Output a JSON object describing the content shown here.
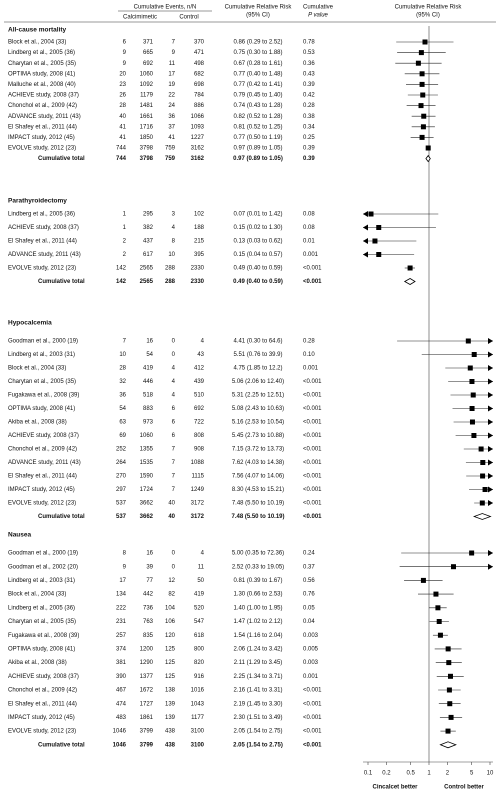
{
  "chart_data": {
    "type": "forest",
    "header": {
      "events": "Cumulative Events, n/N",
      "calc": "Calcimimetic",
      "control": "Control",
      "rr": [
        "Cumulative Relative Risk",
        "(95% CI)"
      ],
      "p": [
        "Cumulative",
        "P value"
      ],
      "plot": [
        "Cumulative Relative Risk",
        "(95% CI)"
      ]
    },
    "xlim": [
      0.1,
      10
    ],
    "xticks": [
      0.1,
      0.2,
      0.5,
      1,
      2,
      5,
      10
    ],
    "log": true,
    "reference": 1,
    "left_label": "Cincalcet better",
    "right_label": "Control better",
    "sections": [
      {
        "title": "All-cause mortality",
        "rows": [
          {
            "study": "Block et al., 2004 (33)",
            "calc_events": 6,
            "calc_n": 371,
            "control_events": 7,
            "control_n": 370,
            "rr": 0.86,
            "lo": 0.29,
            "hi": 2.52,
            "rr_label": "0.86 (0.29 to 2.52)",
            "p": "0.78"
          },
          {
            "study": "Lindberg et al., 2005 (36)",
            "calc_events": 9,
            "calc_n": 665,
            "control_events": 9,
            "control_n": 471,
            "rr": 0.75,
            "lo": 0.3,
            "hi": 1.88,
            "rr_label": "0.75 (0.30 to 1.88)",
            "p": "0.53"
          },
          {
            "study": "Charytan et al., 2005 (35)",
            "calc_events": 9,
            "calc_n": 692,
            "control_events": 11,
            "control_n": 498,
            "rr": 0.67,
            "lo": 0.28,
            "hi": 1.61,
            "rr_label": "0.67 (0.28 to 1.61)",
            "p": "0.36"
          },
          {
            "study": "OPTIMA study, 2008 (41)",
            "calc_events": 20,
            "calc_n": 1060,
            "control_events": 17,
            "control_n": 682,
            "rr": 0.77,
            "lo": 0.4,
            "hi": 1.48,
            "rr_label": "0.77 (0.40 to 1.48)",
            "p": "0.43"
          },
          {
            "study": "Malluche et al., 2008 (40)",
            "calc_events": 23,
            "calc_n": 1092,
            "control_events": 19,
            "control_n": 698,
            "rr": 0.77,
            "lo": 0.42,
            "hi": 1.41,
            "rr_label": "0.77 (0.42 to 1.41)",
            "p": "0.39"
          },
          {
            "study": "ACHIEVE study, 2008 (37)",
            "calc_events": 26,
            "calc_n": 1179,
            "control_events": 22,
            "control_n": 784,
            "rr": 0.79,
            "lo": 0.45,
            "hi": 1.4,
            "rr_label": "0.79 (0.45 to 1.40)",
            "p": "0.42"
          },
          {
            "study": "Chonchol et al., 2009 (42)",
            "calc_events": 28,
            "calc_n": 1481,
            "control_events": 24,
            "control_n": 886,
            "rr": 0.74,
            "lo": 0.43,
            "hi": 1.28,
            "rr_label": "0.74 (0.43 to 1.28)",
            "p": "0.28"
          },
          {
            "study": "ADVANCE study, 2011 (43)",
            "calc_events": 40,
            "calc_n": 1661,
            "control_events": 36,
            "control_n": 1066,
            "rr": 0.82,
            "lo": 0.52,
            "hi": 1.28,
            "rr_label": "0.82 (0.52 to 1.28)",
            "p": "0.38"
          },
          {
            "study": "El Shafey et al., 2011 (44)",
            "calc_events": 41,
            "calc_n": 1716,
            "control_events": 37,
            "control_n": 1093,
            "rr": 0.81,
            "lo": 0.52,
            "hi": 1.25,
            "rr_label": "0.81 (0.52 to 1.25)",
            "p": "0.34"
          },
          {
            "study": "IMPACT study, 2012 (45)",
            "calc_events": 41,
            "calc_n": 1850,
            "control_events": 41,
            "control_n": 1227,
            "rr": 0.77,
            "lo": 0.5,
            "hi": 1.19,
            "rr_label": "0.77 (0.50 to 1.19)",
            "p": "0.25"
          },
          {
            "study": "EVOLVE study, 2012 (23)",
            "calc_events": 744,
            "calc_n": 3798,
            "control_events": 759,
            "control_n": 3162,
            "rr": 0.97,
            "lo": 0.89,
            "hi": 1.05,
            "rr_label": "0.97 (0.89 to 1.05)",
            "p": "0.39"
          }
        ],
        "total": {
          "study": "Cumulative total",
          "calc_events": 744,
          "calc_n": 3798,
          "control_events": 759,
          "control_n": 3162,
          "rr": 0.97,
          "lo": 0.89,
          "hi": 1.05,
          "rr_label": "0.97 (0.89 to 1.05)",
          "p": "0.39"
        }
      },
      {
        "title": "Parathyroidectomy",
        "rows": [
          {
            "study": "Lindberg et al., 2005 (36)",
            "calc_events": 1,
            "calc_n": 295,
            "control_events": 3,
            "control_n": 102,
            "rr": 0.07,
            "lo": 0.01,
            "hi": 1.42,
            "rr_label": "0.07 (0.01 to 1.42)",
            "p": "0.08"
          },
          {
            "study": "ACHIEVE study, 2008 (37)",
            "calc_events": 1,
            "calc_n": 382,
            "control_events": 4,
            "control_n": 188,
            "rr": 0.15,
            "lo": 0.02,
            "hi": 1.3,
            "rr_label": "0.15 (0.02 to 1.30)",
            "p": "0.08"
          },
          {
            "study": "El Shafey et al., 2011 (44)",
            "calc_events": 2,
            "calc_n": 437,
            "control_events": 8,
            "control_n": 215,
            "rr": 0.13,
            "lo": 0.03,
            "hi": 0.62,
            "rr_label": "0.13 (0.03 to 0.62)",
            "p": "0.01"
          },
          {
            "study": "ADVANCE study, 2011 (43)",
            "calc_events": 2,
            "calc_n": 617,
            "control_events": 10,
            "control_n": 395,
            "rr": 0.15,
            "lo": 0.04,
            "hi": 0.57,
            "rr_label": "0.15 (0.04 to 0.57)",
            "p": "0.001"
          },
          {
            "study": "EVOLVE study, 2012 (23)",
            "calc_events": 142,
            "calc_n": 2565,
            "control_events": 288,
            "control_n": 2330,
            "rr": 0.49,
            "lo": 0.4,
            "hi": 0.59,
            "rr_label": "0.49 (0.40 to 0.59)",
            "p": "<0.001"
          }
        ],
        "total": {
          "study": "Cumulative total",
          "calc_events": 142,
          "calc_n": 2565,
          "control_events": 288,
          "control_n": 2330,
          "rr": 0.49,
          "lo": 0.4,
          "hi": 0.59,
          "rr_label": "0.49 (0.40 to 0.59)",
          "p": "<0.001"
        }
      },
      {
        "title": "Hypocalcemia",
        "rows": [
          {
            "study": "Goodman et al., 2000 (19)",
            "calc_events": 7,
            "calc_n": 16,
            "control_events": 0,
            "control_n": 4,
            "rr": 4.41,
            "lo": 0.3,
            "hi": 64.6,
            "rr_label": "4.41 (0.30 to 64.6)",
            "p": "0.28"
          },
          {
            "study": "Lindberg et al., 2003 (31)",
            "calc_events": 10,
            "calc_n": 54,
            "control_events": 0,
            "control_n": 43,
            "rr": 5.51,
            "lo": 0.76,
            "hi": 39.9,
            "rr_label": "5.51 (0.76 to 39.9)",
            "p": "0.10"
          },
          {
            "study": "Block et al., 2004 (33)",
            "calc_events": 28,
            "calc_n": 419,
            "control_events": 4,
            "control_n": 412,
            "rr": 4.75,
            "lo": 1.85,
            "hi": 12.2,
            "rr_label": "4.75 (1.85 to 12.2)",
            "p": "0.001"
          },
          {
            "study": "Charytan et al., 2005 (35)",
            "calc_events": 32,
            "calc_n": 446,
            "control_events": 4,
            "control_n": 439,
            "rr": 5.06,
            "lo": 2.06,
            "hi": 12.4,
            "rr_label": "5.06 (2.06 to 12.40)",
            "p": "<0.001"
          },
          {
            "study": "Fugakawa et al., 2008 (39)",
            "calc_events": 36,
            "calc_n": 518,
            "control_events": 4,
            "control_n": 510,
            "rr": 5.31,
            "lo": 2.25,
            "hi": 12.51,
            "rr_label": "5.31 (2.25 to 12.51)",
            "p": "<0.001"
          },
          {
            "study": "OPTIMA study, 2008 (41)",
            "calc_events": 54,
            "calc_n": 883,
            "control_events": 6,
            "control_n": 692,
            "rr": 5.08,
            "lo": 2.43,
            "hi": 10.63,
            "rr_label": "5.08 (2.43 to 10.63)",
            "p": "<0.001"
          },
          {
            "study": "Akiba et al., 2008 (38)",
            "calc_events": 63,
            "calc_n": 973,
            "control_events": 6,
            "control_n": 722,
            "rr": 5.16,
            "lo": 2.53,
            "hi": 10.54,
            "rr_label": "5.16 (2.53 to 10.54)",
            "p": "<0.001"
          },
          {
            "study": "ACHIEVE study, 2008 (37)",
            "calc_events": 69,
            "calc_n": 1060,
            "control_events": 6,
            "control_n": 808,
            "rr": 5.45,
            "lo": 2.73,
            "hi": 10.88,
            "rr_label": "5.45 (2.73 to 10.88)",
            "p": "<0.001"
          },
          {
            "study": "Chonchol et al., 2009 (42)",
            "calc_events": 252,
            "calc_n": 1355,
            "control_events": 7,
            "control_n": 908,
            "rr": 7.15,
            "lo": 3.72,
            "hi": 13.73,
            "rr_label": "7.15 (3.72 to 13.73)",
            "p": "<0.001"
          },
          {
            "study": "ADVANCE study, 2011 (43)",
            "calc_events": 264,
            "calc_n": 1535,
            "control_events": 7,
            "control_n": 1088,
            "rr": 7.62,
            "lo": 4.03,
            "hi": 14.38,
            "rr_label": "7.62 (4.03 to 14.38)",
            "p": "<0.001"
          },
          {
            "study": "El Shafey et al., 2011 (44)",
            "calc_events": 270,
            "calc_n": 1590,
            "control_events": 7,
            "control_n": 1115,
            "rr": 7.56,
            "lo": 4.07,
            "hi": 14.06,
            "rr_label": "7.56 (4.07 to 14.06)",
            "p": "<0.001"
          },
          {
            "study": "IMPACT study, 2012 (45)",
            "calc_events": 297,
            "calc_n": 1724,
            "control_events": 7,
            "control_n": 1249,
            "rr": 8.3,
            "lo": 4.53,
            "hi": 15.21,
            "rr_label": "8.30 (4.53 to 15.21)",
            "p": "<0.001"
          },
          {
            "study": "EVOLVE study, 2012 (23)",
            "calc_events": 537,
            "calc_n": 3662,
            "control_events": 40,
            "control_n": 3172,
            "rr": 7.48,
            "lo": 5.5,
            "hi": 10.19,
            "rr_label": "7.48 (5.50 to 10.19)",
            "p": "<0.001"
          }
        ],
        "total": {
          "study": "Cumulative total",
          "calc_events": 537,
          "calc_n": 3662,
          "control_events": 40,
          "control_n": 3172,
          "rr": 7.48,
          "lo": 5.5,
          "hi": 10.19,
          "rr_label": "7.48 (5.50 to 10.19)",
          "p": "<0.001"
        }
      },
      {
        "title": "Nausea",
        "rows": [
          {
            "study": "Goodman et al., 2000 (19)",
            "calc_events": 8,
            "calc_n": 16,
            "control_events": 0,
            "control_n": 4,
            "rr": 5.0,
            "lo": 0.35,
            "hi": 72.36,
            "rr_label": "5.00 (0.35 to 72.36)",
            "p": "0.24"
          },
          {
            "study": "Goodman et al., 2002 (20)",
            "calc_events": 9,
            "calc_n": 39,
            "control_events": 0,
            "control_n": 11,
            "rr": 2.52,
            "lo": 0.33,
            "hi": 19.05,
            "rr_label": "2.52 (0.33 to 19.05)",
            "p": "0.37"
          },
          {
            "study": "Lindberg et al., 2003 (31)",
            "calc_events": 17,
            "calc_n": 77,
            "control_events": 12,
            "control_n": 50,
            "rr": 0.81,
            "lo": 0.39,
            "hi": 1.67,
            "rr_label": "0.81 (0.39 to 1.67)",
            "p": "0.56"
          },
          {
            "study": "Block et al., 2004 (33)",
            "calc_events": 134,
            "calc_n": 442,
            "control_events": 82,
            "control_n": 419,
            "rr": 1.3,
            "lo": 0.66,
            "hi": 2.53,
            "rr_label": "1.30 (0.66 to 2.53)",
            "p": "0.76"
          },
          {
            "study": "Lindberg et al., 2005 (36)",
            "calc_events": 222,
            "calc_n": 736,
            "control_events": 104,
            "control_n": 520,
            "rr": 1.4,
            "lo": 1.0,
            "hi": 1.95,
            "rr_label": "1.40 (1.00 to 1.95)",
            "p": "0.05"
          },
          {
            "study": "Charytan et al., 2005 (35)",
            "calc_events": 231,
            "calc_n": 763,
            "control_events": 106,
            "control_n": 547,
            "rr": 1.47,
            "lo": 1.02,
            "hi": 2.12,
            "rr_label": "1.47 (1.02 to 2.12)",
            "p": "0.04"
          },
          {
            "study": "Fugakawa et al., 2008 (39)",
            "calc_events": 257,
            "calc_n": 835,
            "control_events": 120,
            "control_n": 618,
            "rr": 1.54,
            "lo": 1.16,
            "hi": 2.04,
            "rr_label": "1.54 (1.16 to 2.04)",
            "p": "0.003"
          },
          {
            "study": "OPTIMA study, 2008 (41)",
            "calc_events": 374,
            "calc_n": 1200,
            "control_events": 125,
            "control_n": 800,
            "rr": 2.06,
            "lo": 1.24,
            "hi": 3.42,
            "rr_label": "2.06 (1.24 to 3.42)",
            "p": "0.005"
          },
          {
            "study": "Akiba et al., 2008 (38)",
            "calc_events": 381,
            "calc_n": 1290,
            "control_events": 125,
            "control_n": 820,
            "rr": 2.11,
            "lo": 1.29,
            "hi": 3.45,
            "rr_label": "2.11 (1.29 to 3.45)",
            "p": "0.003"
          },
          {
            "study": "ACHIEVE study, 2008 (37)",
            "calc_events": 390,
            "calc_n": 1377,
            "control_events": 125,
            "control_n": 916,
            "rr": 2.25,
            "lo": 1.34,
            "hi": 3.71,
            "rr_label": "2.25 (1.34 to 3.71)",
            "p": "0.001"
          },
          {
            "study": "Chonchol et al., 2009 (42)",
            "calc_events": 467,
            "calc_n": 1672,
            "control_events": 138,
            "control_n": 1016,
            "rr": 2.16,
            "lo": 1.41,
            "hi": 3.31,
            "rr_label": "2.16 (1.41 to 3.31)",
            "p": "<0.001"
          },
          {
            "study": "El Shafey et al., 2011 (44)",
            "calc_events": 474,
            "calc_n": 1727,
            "control_events": 139,
            "control_n": 1043,
            "rr": 2.19,
            "lo": 1.45,
            "hi": 3.3,
            "rr_label": "2.19 (1.45 to 3.30)",
            "p": "<0.001"
          },
          {
            "study": "IMPACT study, 2012 (45)",
            "calc_events": 483,
            "calc_n": 1861,
            "control_events": 139,
            "control_n": 1177,
            "rr": 2.3,
            "lo": 1.51,
            "hi": 3.49,
            "rr_label": "2.30 (1.51 to 3.49)",
            "p": "<0.001"
          },
          {
            "study": "EVOLVE study, 2012 (23)",
            "calc_events": 1046,
            "calc_n": 3799,
            "control_events": 438,
            "control_n": 3100,
            "rr": 2.05,
            "lo": 1.54,
            "hi": 2.75,
            "rr_label": "2.05 (1.54 to 2.75)",
            "p": "<0.001"
          }
        ],
        "total": {
          "study": "Cumulative total",
          "calc_events": 1046,
          "calc_n": 3799,
          "control_events": 438,
          "control_n": 3100,
          "rr": 2.05,
          "lo": 1.54,
          "hi": 2.75,
          "rr_label": "2.05 (1.54 to 2.75)",
          "p": "<0.001"
        }
      }
    ]
  }
}
